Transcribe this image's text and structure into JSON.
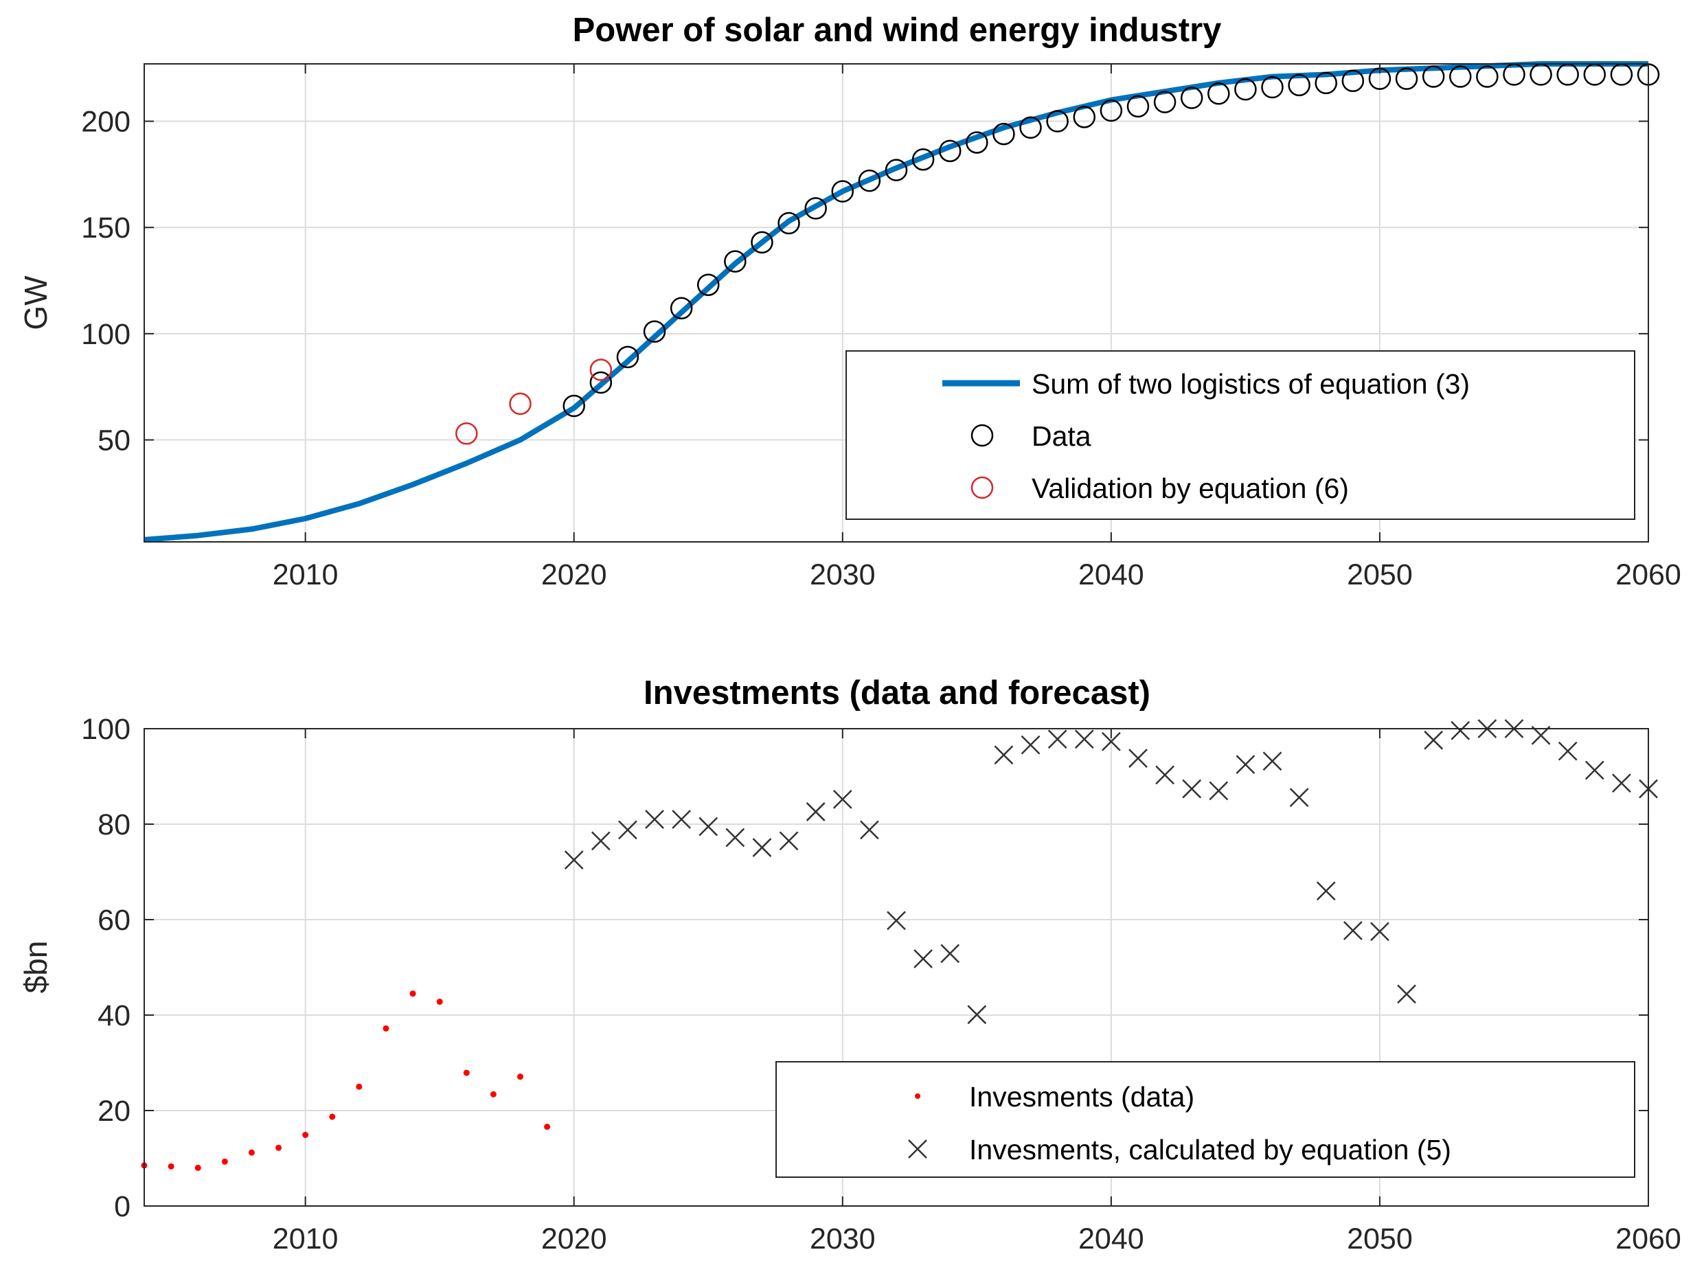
{
  "colors": {
    "line": "#0072BD",
    "data_marker": "#000000",
    "validation_marker": "#D62728",
    "invest_data": "#FF0000",
    "invest_calc": "#333333",
    "grid": "#DCDCDC",
    "axis": "#262626"
  },
  "chart_data": [
    {
      "type": "line",
      "title": "Power of solar and wind energy industry",
      "xlabel": "",
      "ylabel": "GW",
      "xlim": [
        2004,
        2060
      ],
      "ylim": [
        2,
        227
      ],
      "grid": true,
      "xticks": [
        2010,
        2020,
        2030,
        2040,
        2050,
        2060
      ],
      "yticks": [
        50,
        100,
        150,
        200
      ],
      "legend_position": "bottom-right",
      "series": [
        {
          "name": "Sum of two logistics of equation (3)",
          "kind": "line",
          "x": [
            2004,
            2006,
            2008,
            2010,
            2012,
            2014,
            2016,
            2018,
            2020,
            2022,
            2024,
            2026,
            2028,
            2030,
            2032,
            2034,
            2036,
            2038,
            2040,
            2042,
            2044,
            2046,
            2048,
            2050,
            2052,
            2054,
            2056,
            2058,
            2060
          ],
          "y": [
            3,
            5,
            8,
            13,
            20,
            29,
            39,
            50,
            65,
            87,
            110,
            133,
            153,
            167,
            178,
            188,
            197,
            204,
            210,
            214,
            218,
            221,
            222,
            224,
            225,
            226,
            227,
            227,
            227
          ]
        },
        {
          "name": "Data",
          "kind": "circles",
          "x": [
            2020,
            2021,
            2022,
            2023,
            2024,
            2025,
            2026,
            2027,
            2028,
            2029,
            2030,
            2031,
            2032,
            2033,
            2034,
            2035,
            2036,
            2037,
            2038,
            2039,
            2040,
            2041,
            2042,
            2043,
            2044,
            2045,
            2046,
            2047,
            2048,
            2049,
            2050,
            2051,
            2052,
            2053,
            2054,
            2055,
            2056,
            2057,
            2058,
            2059,
            2060
          ],
          "y": [
            66,
            77,
            89,
            101,
            112,
            123,
            134,
            143,
            152,
            159,
            167,
            172,
            177,
            182,
            186,
            190,
            194,
            197,
            200,
            202,
            205,
            207,
            209,
            211,
            213,
            215,
            216,
            217,
            218,
            219,
            220,
            220,
            221,
            221,
            221,
            222,
            222,
            222,
            222,
            222,
            222
          ]
        },
        {
          "name": "Validation by equation (6)",
          "kind": "circles",
          "x": [
            2016,
            2018,
            2021
          ],
          "y": [
            53,
            67,
            83
          ]
        }
      ]
    },
    {
      "type": "scatter",
      "title": "Investments (data and forecast)",
      "xlabel": "",
      "ylabel": "$bn",
      "xlim": [
        2004,
        2060
      ],
      "ylim": [
        0,
        100
      ],
      "grid": true,
      "xticks": [
        2010,
        2020,
        2030,
        2040,
        2050,
        2060
      ],
      "yticks": [
        0,
        20,
        40,
        60,
        80,
        100
      ],
      "legend_position": "bottom-right",
      "series": [
        {
          "name": "Invesments (data)",
          "kind": "dots",
          "x": [
            2004,
            2005,
            2006,
            2007,
            2008,
            2009,
            2010,
            2011,
            2012,
            2013,
            2014,
            2015,
            2016,
            2017,
            2018,
            2019
          ],
          "y": [
            8.5,
            8.3,
            8.0,
            9.3,
            11.2,
            12.2,
            14.9,
            18.7,
            25.0,
            37.2,
            44.5,
            42.8,
            27.9,
            23.4,
            27.1,
            16.6
          ]
        },
        {
          "name": "Invesments, calculated by equation (5)",
          "kind": "crosses",
          "x": [
            2020,
            2021,
            2022,
            2023,
            2024,
            2025,
            2026,
            2027,
            2028,
            2029,
            2030,
            2031,
            2032,
            2033,
            2034,
            2035,
            2036,
            2037,
            2038,
            2039,
            2040,
            2041,
            2042,
            2043,
            2044,
            2045,
            2046,
            2047,
            2048,
            2049,
            2050,
            2051,
            2052,
            2053,
            2054,
            2055,
            2056,
            2057,
            2058,
            2059,
            2060
          ],
          "y": [
            72.5,
            76.5,
            78.8,
            81.0,
            81.0,
            79.5,
            77.2,
            75.1,
            76.5,
            82.6,
            85.2,
            78.8,
            59.8,
            51.8,
            52.9,
            40.1,
            94.5,
            96.6,
            97.8,
            97.8,
            97.3,
            93.8,
            90.3,
            87.4,
            87.0,
            92.5,
            93.2,
            85.6,
            66.0,
            57.7,
            57.5,
            44.4,
            97.6,
            99.6,
            100.0,
            100.0,
            98.6,
            95.3,
            91.3,
            88.6,
            87.4
          ]
        }
      ]
    }
  ]
}
